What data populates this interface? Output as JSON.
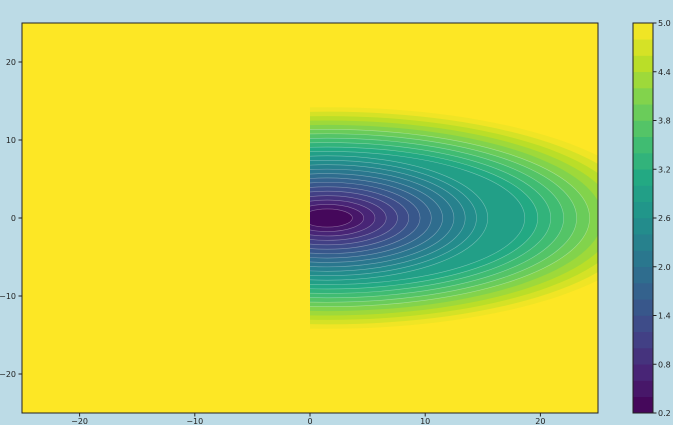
{
  "chart_data": {
    "type": "contourf",
    "title": "",
    "xlabel": "",
    "ylabel": "",
    "xlim": [
      -25,
      25
    ],
    "ylim": [
      -25,
      25
    ],
    "xticks": [
      -20,
      -10,
      0,
      10,
      20
    ],
    "xtick_labels": [
      "−20",
      "−10",
      "0",
      "10",
      "20"
    ],
    "yticks": [
      20,
      10,
      0,
      -10,
      -20
    ],
    "ytick_labels": [
      "20",
      "10",
      "0",
      "−10",
      "−20"
    ],
    "colormap": "viridis",
    "value_range": [
      0.2,
      5.0
    ],
    "level_step": 0.2,
    "colorbar": {
      "ticks": [
        5.0,
        4.4,
        3.8,
        3.2,
        2.6,
        2.0,
        1.4,
        0.8,
        0.2
      ],
      "tick_labels": [
        "5.0",
        "4.4",
        "3.8",
        "3.2",
        "2.6",
        "2.0",
        "1.4",
        "0.8",
        "0.2"
      ],
      "placement": "right"
    },
    "field_features": {
      "background_value": 5.0,
      "minimum_value": 0.2,
      "minimum_location": [
        1.5,
        0
      ],
      "nonuniform_region_x": [
        0,
        25
      ],
      "nonuniform_region_y": [
        -14,
        14
      ]
    },
    "grid": false
  },
  "colors": {
    "background": "#bcdbe6",
    "plot_max_color": "#fde725",
    "plot_min_color": "#440154",
    "contour_line": "#ffffff"
  }
}
